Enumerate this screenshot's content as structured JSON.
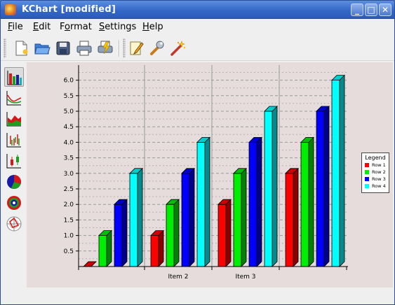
{
  "window": {
    "title": "KChart [modified]"
  },
  "window_controls": {
    "minimize": "_",
    "maximize": "□",
    "close": "✕"
  },
  "menu": {
    "file": {
      "underline": "F",
      "rest": "ile"
    },
    "edit": {
      "underline": "E",
      "rest": "dit"
    },
    "format": {
      "prefix": "F",
      "underline": "o",
      "rest": "rmat"
    },
    "settings": {
      "underline": "S",
      "rest": "ettings"
    },
    "help": {
      "underline": "H",
      "rest": "elp"
    }
  },
  "toolbar_icons": [
    "new-document-icon",
    "open-folder-icon",
    "save-disk-icon",
    "print-icon",
    "print-preview-icon",
    "edit-data-icon",
    "configure-wrench-icon",
    "wizard-wand-icon"
  ],
  "sidebar_icons": [
    "bar-chart-type-icon",
    "line-chart-type-icon",
    "area-chart-type-icon",
    "hilo-chart-type-icon",
    "box-whisker-chart-type-icon",
    "pie-chart-type-icon",
    "ring-chart-type-icon",
    "polar-chart-type-icon"
  ],
  "colors": {
    "row1": "#ff0000",
    "row2": "#00ee00",
    "row3": "#0000ff",
    "row4": "#00ffff"
  },
  "chart_data": {
    "type": "bar",
    "style": "3d-grouped",
    "categories": [
      "",
      "Item 2",
      "Item 3",
      ""
    ],
    "series": [
      {
        "name": "Row 1",
        "color": "#ff0000",
        "values": [
          0,
          1,
          2,
          3
        ]
      },
      {
        "name": "Row 2",
        "color": "#00ee00",
        "values": [
          1,
          2,
          3,
          4
        ]
      },
      {
        "name": "Row 3",
        "color": "#0000ff",
        "values": [
          2,
          3,
          4,
          5
        ]
      },
      {
        "name": "Row 4",
        "color": "#00ffff",
        "values": [
          3,
          4,
          5,
          6
        ]
      }
    ],
    "y_ticks": [
      "0.5",
      "1.0",
      "1.5",
      "2.0",
      "2.5",
      "3.0",
      "3.5",
      "4.0",
      "4.5",
      "5.0",
      "5.5",
      "6.0"
    ],
    "ylim": [
      0,
      6.5
    ],
    "grid": true,
    "legend": {
      "title": "Legend",
      "placement": "right"
    }
  }
}
